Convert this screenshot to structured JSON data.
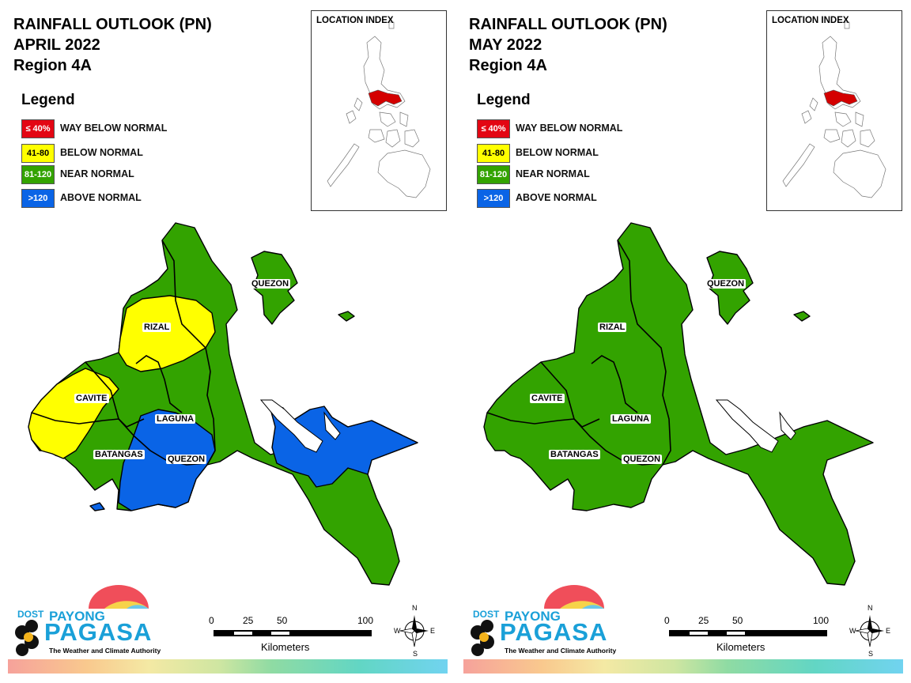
{
  "colors": {
    "way_below": "#e30613",
    "below": "#ffff00",
    "near": "#33a300",
    "above": "#0a64e6",
    "inset_highlight": "#d40000"
  },
  "panels": [
    {
      "title_line1": "RAINFALL OUTLOOK (PN)",
      "title_line2": "APRIL 2022",
      "title_line3": "Region 4A",
      "legend_title": "Legend",
      "legend": [
        {
          "range": "≤ 40%",
          "label": "WAY BELOW NORMAL"
        },
        {
          "range": "41-80",
          "label": "BELOW NORMAL"
        },
        {
          "range": "81-120",
          "label": "NEAR NORMAL"
        },
        {
          "range": ">120",
          "label": "ABOVE NORMAL"
        }
      ],
      "inset_title": "LOCATION INDEX",
      "map_labels": {
        "quezon_north": "QUEZON",
        "rizal": "RIZAL",
        "cavite": "CAVITE",
        "laguna": "LAGUNA",
        "batangas": "BATANGAS",
        "quezon_south": "QUEZON"
      },
      "province_categories": {
        "rizal": "below",
        "cavite": "below",
        "laguna": "above",
        "batangas": "near",
        "quezon": "near",
        "bondoc_peninsula": "above"
      },
      "scale": {
        "ticks": [
          "0",
          "25",
          "50",
          "100"
        ],
        "unit": "Kilometers"
      },
      "compass": {
        "n": "N",
        "s": "S",
        "e": "E",
        "w": "W"
      },
      "logo": {
        "dost": "DOST",
        "payong": "PAYONG",
        "pagasa": "PAGASA",
        "tagline": "The Weather and Climate Authority"
      }
    },
    {
      "title_line1": "RAINFALL OUTLOOK (PN)",
      "title_line2": "MAY 2022",
      "title_line3": "Region 4A",
      "legend_title": "Legend",
      "legend": [
        {
          "range": "≤ 40%",
          "label": "WAY BELOW NORMAL"
        },
        {
          "range": "41-80",
          "label": "BELOW NORMAL"
        },
        {
          "range": "81-120",
          "label": "NEAR NORMAL"
        },
        {
          "range": ">120",
          "label": "ABOVE NORMAL"
        }
      ],
      "inset_title": "LOCATION INDEX",
      "map_labels": {
        "quezon_north": "QUEZON",
        "rizal": "RIZAL",
        "cavite": "CAVITE",
        "laguna": "LAGUNA",
        "batangas": "BATANGAS",
        "quezon_south": "QUEZON"
      },
      "province_categories": {
        "rizal": "near",
        "cavite": "near",
        "laguna": "near",
        "batangas": "near",
        "quezon": "near",
        "bondoc_peninsula": "near"
      },
      "scale": {
        "ticks": [
          "0",
          "25",
          "50",
          "100"
        ],
        "unit": "Kilometers"
      },
      "compass": {
        "n": "N",
        "s": "S",
        "e": "E",
        "w": "W"
      },
      "logo": {
        "dost": "DOST",
        "payong": "PAYONG",
        "pagasa": "PAGASA",
        "tagline": "The Weather and Climate Authority"
      }
    }
  ]
}
